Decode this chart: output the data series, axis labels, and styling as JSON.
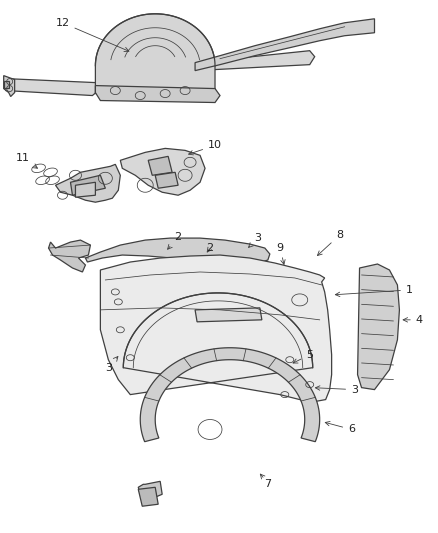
{
  "background_color": "#ffffff",
  "line_color": "#404040",
  "label_color": "#222222",
  "figsize": [
    4.38,
    5.33
  ],
  "dpi": 100,
  "label_fontsize": 7.5
}
